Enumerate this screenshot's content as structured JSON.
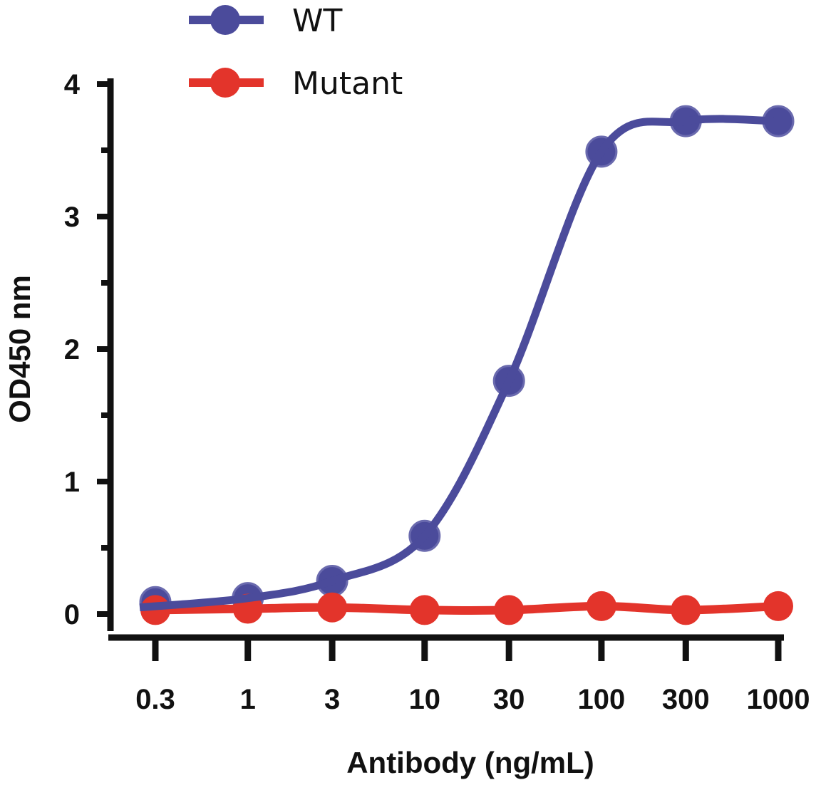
{
  "chart_data": {
    "type": "line",
    "title": "",
    "xlabel": "Antibody (ng/mL)",
    "ylabel": "OD450 nm",
    "x": [
      0.3,
      1,
      3,
      10,
      30,
      100,
      300,
      1000
    ],
    "x_tick_labels": [
      "0.3",
      "1",
      "3",
      "10",
      "30",
      "100",
      "300",
      "1000"
    ],
    "x_scale": "log",
    "y_ticks": [
      0,
      1,
      2,
      3,
      4
    ],
    "y_tick_labels": [
      "0",
      "1",
      "2",
      "3",
      "4"
    ],
    "ylim": [
      0,
      4
    ],
    "grid": false,
    "legend_position": "top",
    "series": [
      {
        "name": "WT",
        "color": "#4b4b9b",
        "values": [
          0.09,
          0.12,
          0.25,
          0.59,
          1.76,
          3.49,
          3.72,
          3.72
        ]
      },
      {
        "name": "Mutant",
        "color": "#e3342b",
        "values": [
          0.03,
          0.04,
          0.05,
          0.03,
          0.03,
          0.06,
          0.03,
          0.06
        ]
      }
    ]
  }
}
